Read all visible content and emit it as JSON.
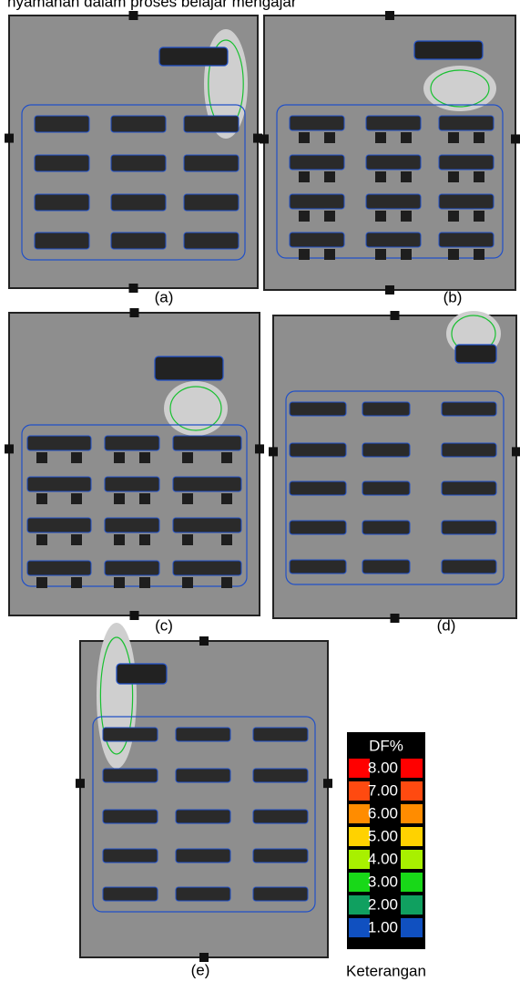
{
  "caption_top": "nyamanan dalam proses belajar mengajar",
  "panels": [
    {
      "label": "(a)"
    },
    {
      "label": "(b)"
    },
    {
      "label": "(c)"
    },
    {
      "label": "(d)"
    },
    {
      "label": "(e)"
    }
  ],
  "legend": {
    "title": "DF%",
    "items": [
      {
        "label": "8.00",
        "color": "#ff0000"
      },
      {
        "label": "7.00",
        "color": "#ff4a10"
      },
      {
        "label": "6.00",
        "color": "#ff8c00"
      },
      {
        "label": "5.00",
        "color": "#ffd200"
      },
      {
        "label": "4.00",
        "color": "#a8f000"
      },
      {
        "label": "3.00",
        "color": "#18d818"
      },
      {
        "label": "2.00",
        "color": "#10a060"
      },
      {
        "label": "1.00",
        "color": "#1050c0"
      }
    ],
    "caption": "Keterangan"
  }
}
